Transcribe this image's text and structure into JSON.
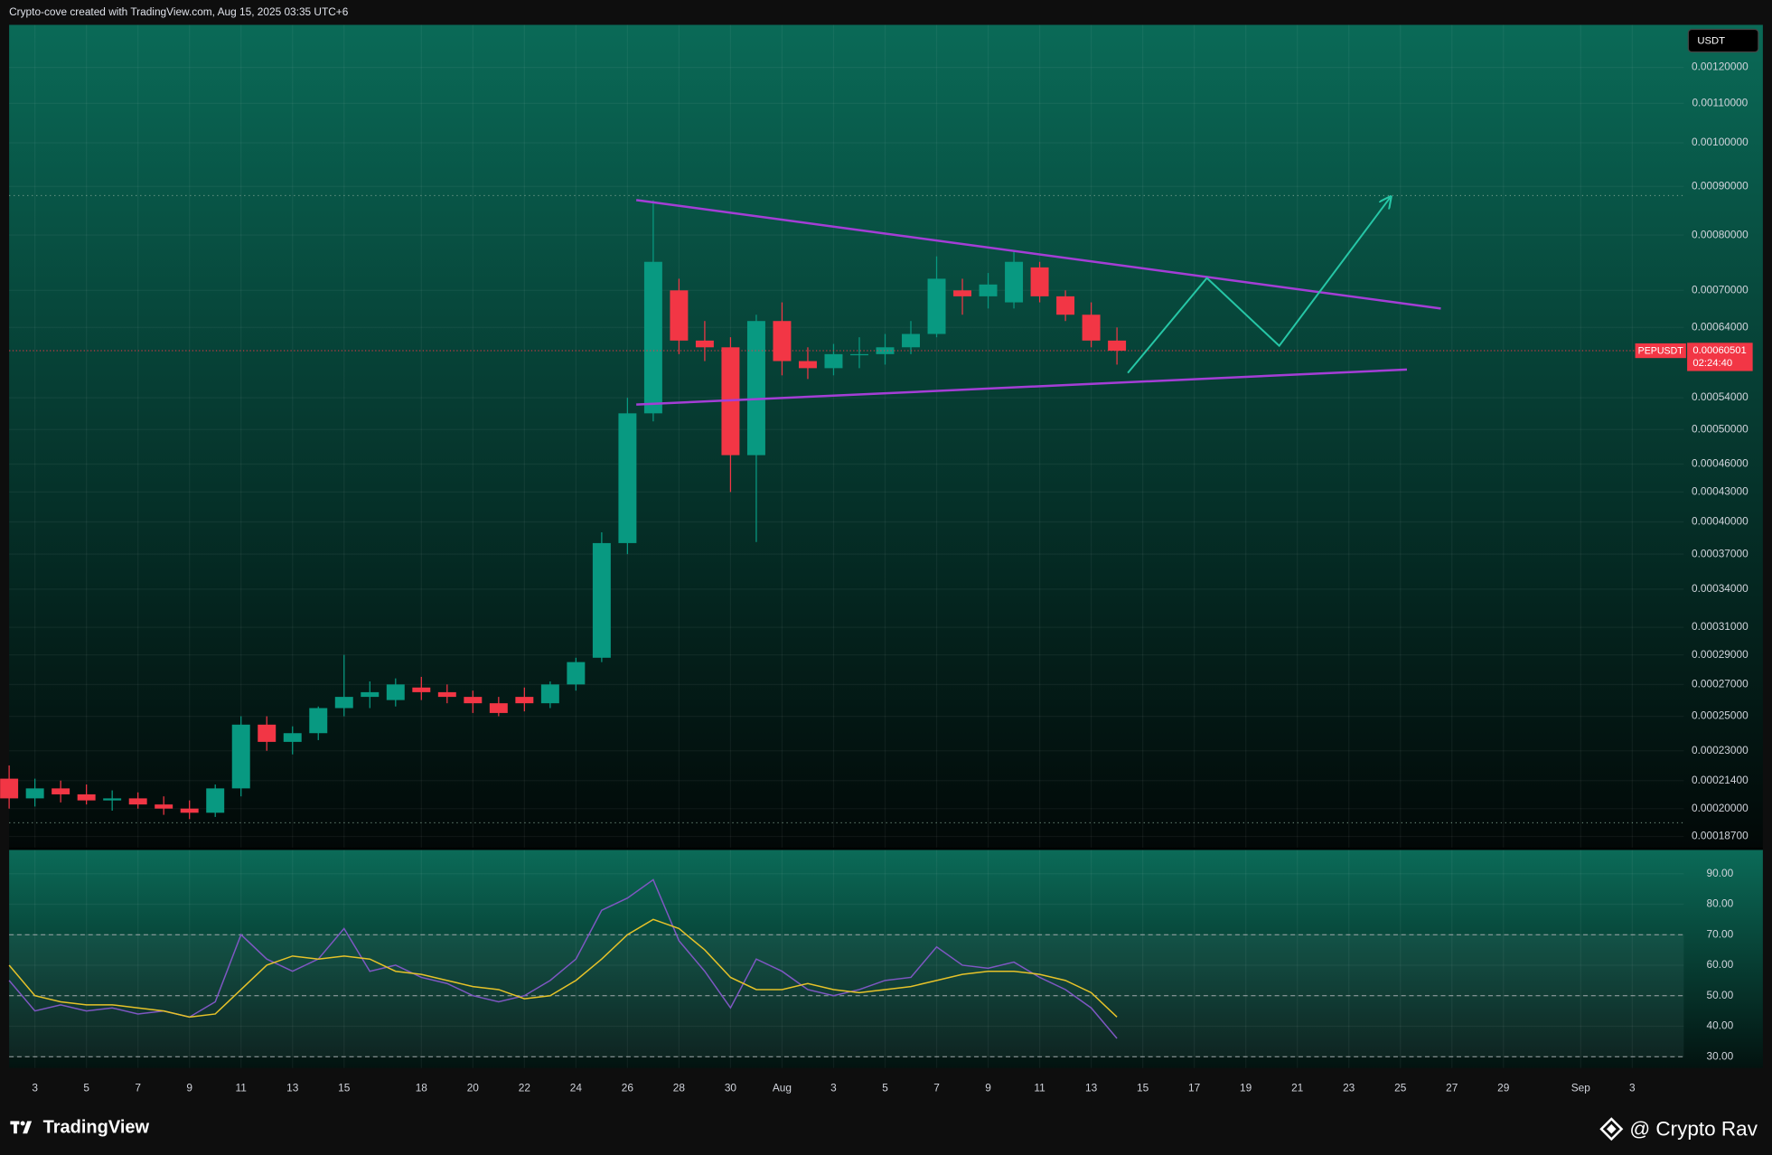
{
  "header": {
    "text": "Crypto-cove created with TradingView.com, Aug 15, 2025 03:35 UTC+6"
  },
  "currency": "USDT",
  "symbol": "PEPUSDT",
  "last_price": 0.00060501,
  "last_price_label": "0.00060501",
  "countdown": "02:24:40",
  "footer": {
    "brand": "TradingView",
    "author": "@ Crypto Rav"
  },
  "chart_data": [
    {
      "type": "candlestick",
      "log_scale": true,
      "grid": true,
      "up_color": "#089981",
      "down_color": "#f23645",
      "xlim": [
        "2025-07-02",
        "2025-09-05"
      ],
      "ylim": [
        0.000182,
        0.00133
      ],
      "yticks": [
        {
          "value": 0.0012,
          "label": "0.00120000"
        },
        {
          "value": 0.0011,
          "label": "0.00110000"
        },
        {
          "value": 0.001,
          "label": "0.00100000"
        },
        {
          "value": 0.0009,
          "label": "0.00090000"
        },
        {
          "value": 0.0008,
          "label": "0.00080000"
        },
        {
          "value": 0.0007,
          "label": "0.00070000"
        },
        {
          "value": 0.00064,
          "label": "0.00064000"
        },
        {
          "value": 0.00054,
          "label": "0.00054000"
        },
        {
          "value": 0.0005,
          "label": "0.00050000"
        },
        {
          "value": 0.00046,
          "label": "0.00046000"
        },
        {
          "value": 0.00043,
          "label": "0.00043000"
        },
        {
          "value": 0.0004,
          "label": "0.00040000"
        },
        {
          "value": 0.00037,
          "label": "0.00037000"
        },
        {
          "value": 0.00034,
          "label": "0.00034000"
        },
        {
          "value": 0.00031,
          "label": "0.00031000"
        },
        {
          "value": 0.00029,
          "label": "0.00029000"
        },
        {
          "value": 0.00027,
          "label": "0.00027000"
        },
        {
          "value": 0.00025,
          "label": "0.00025000"
        },
        {
          "value": 0.00023,
          "label": "0.00023000"
        },
        {
          "value": 0.000214,
          "label": "0.00021400"
        },
        {
          "value": 0.0002,
          "label": "0.00020000"
        },
        {
          "value": 0.000187,
          "label": "0.00018700"
        }
      ],
      "x": [
        "2025-07-02",
        "2025-07-03",
        "2025-07-04",
        "2025-07-05",
        "2025-07-06",
        "2025-07-07",
        "2025-07-08",
        "2025-07-09",
        "2025-07-10",
        "2025-07-11",
        "2025-07-12",
        "2025-07-13",
        "2025-07-14",
        "2025-07-15",
        "2025-07-16",
        "2025-07-17",
        "2025-07-18",
        "2025-07-19",
        "2025-07-20",
        "2025-07-21",
        "2025-07-22",
        "2025-07-23",
        "2025-07-24",
        "2025-07-25",
        "2025-07-26",
        "2025-07-27",
        "2025-07-28",
        "2025-07-29",
        "2025-07-30",
        "2025-07-31",
        "2025-08-01",
        "2025-08-02",
        "2025-08-03",
        "2025-08-04",
        "2025-08-05",
        "2025-08-06",
        "2025-08-07",
        "2025-08-08",
        "2025-08-09",
        "2025-08-10",
        "2025-08-11",
        "2025-08-12",
        "2025-08-13",
        "2025-08-14"
      ],
      "open": [
        0.000215,
        0.000205,
        0.00021,
        0.000207,
        0.000204,
        0.000205,
        0.000202,
        0.0002,
        0.000198,
        0.00021,
        0.000245,
        0.000235,
        0.00024,
        0.000255,
        0.000262,
        0.00026,
        0.000268,
        0.000265,
        0.000262,
        0.000258,
        0.000262,
        0.000258,
        0.00027,
        0.000288,
        0.00038,
        0.00052,
        0.0007,
        0.00062,
        0.00061,
        0.00047,
        0.00065,
        0.00059,
        0.00058,
        0.0006,
        0.0006,
        0.00061,
        0.00063,
        0.0007,
        0.00069,
        0.00068,
        0.00074,
        0.00069,
        0.00066,
        0.00062
      ],
      "high": [
        0.000222,
        0.000215,
        0.000214,
        0.000212,
        0.000209,
        0.000208,
        0.000206,
        0.000204,
        0.000212,
        0.00025,
        0.00025,
        0.000244,
        0.000256,
        0.00029,
        0.000272,
        0.000274,
        0.000275,
        0.00027,
        0.000266,
        0.000262,
        0.000268,
        0.000272,
        0.000288,
        0.00039,
        0.00054,
        0.00087,
        0.00072,
        0.00065,
        0.000625,
        0.00066,
        0.00068,
        0.00061,
        0.000615,
        0.000625,
        0.00063,
        0.00065,
        0.00076,
        0.00072,
        0.00073,
        0.00077,
        0.00075,
        0.0007,
        0.00068,
        0.00064
      ],
      "low": [
        0.0002,
        0.000201,
        0.000203,
        0.000202,
        0.000199,
        0.0002,
        0.000197,
        0.000195,
        0.000196,
        0.000206,
        0.00023,
        0.000228,
        0.000236,
        0.00025,
        0.000255,
        0.000256,
        0.00026,
        0.000258,
        0.000252,
        0.00025,
        0.000253,
        0.000255,
        0.000266,
        0.000285,
        0.00037,
        0.00051,
        0.0006,
        0.00059,
        0.00043,
        0.000381,
        0.00057,
        0.000565,
        0.00057,
        0.00058,
        0.000585,
        0.0006,
        0.000625,
        0.00066,
        0.00067,
        0.00067,
        0.00068,
        0.00065,
        0.00061,
        0.000585
      ],
      "close": [
        0.000205,
        0.00021,
        0.000207,
        0.000204,
        0.000205,
        0.000202,
        0.0002,
        0.000198,
        0.00021,
        0.000245,
        0.000235,
        0.00024,
        0.000255,
        0.000262,
        0.000265,
        0.00027,
        0.000265,
        0.000262,
        0.000258,
        0.000252,
        0.000258,
        0.00027,
        0.000285,
        0.00038,
        0.00052,
        0.00075,
        0.00062,
        0.00061,
        0.00047,
        0.00065,
        0.00059,
        0.00058,
        0.0006,
        0.0006,
        0.00061,
        0.00063,
        0.00072,
        0.00069,
        0.00071,
        0.00075,
        0.00069,
        0.00066,
        0.00062,
        0.000605
      ]
    },
    {
      "type": "line",
      "grid": true,
      "xlim": [
        "2025-07-02",
        "2025-09-05"
      ],
      "ylim": [
        26.3,
        97.8
      ],
      "yticks": [
        {
          "value": 90,
          "label": "90.00"
        },
        {
          "value": 80,
          "label": "80.00"
        },
        {
          "value": 70,
          "label": "70.00"
        },
        {
          "value": 60,
          "label": "60.00"
        },
        {
          "value": 50,
          "label": "50.00"
        },
        {
          "value": 40,
          "label": "40.00"
        },
        {
          "value": 30,
          "label": "30.00"
        }
      ],
      "levels": [
        70,
        50,
        30
      ],
      "xticks": [
        {
          "value": "2025-07-03",
          "label": "3"
        },
        {
          "value": "2025-07-05",
          "label": "5"
        },
        {
          "value": "2025-07-07",
          "label": "7"
        },
        {
          "value": "2025-07-09",
          "label": "9"
        },
        {
          "value": "2025-07-11",
          "label": "11"
        },
        {
          "value": "2025-07-13",
          "label": "13"
        },
        {
          "value": "2025-07-15",
          "label": "15"
        },
        {
          "value": "2025-07-18",
          "label": "18"
        },
        {
          "value": "2025-07-20",
          "label": "20"
        },
        {
          "value": "2025-07-22",
          "label": "22"
        },
        {
          "value": "2025-07-24",
          "label": "24"
        },
        {
          "value": "2025-07-26",
          "label": "26"
        },
        {
          "value": "2025-07-28",
          "label": "28"
        },
        {
          "value": "2025-07-30",
          "label": "30"
        },
        {
          "value": "2025-08-01",
          "label": "Aug"
        },
        {
          "value": "2025-08-03",
          "label": "3"
        },
        {
          "value": "2025-08-05",
          "label": "5"
        },
        {
          "value": "2025-08-07",
          "label": "7"
        },
        {
          "value": "2025-08-09",
          "label": "9"
        },
        {
          "value": "2025-08-11",
          "label": "11"
        },
        {
          "value": "2025-08-13",
          "label": "13"
        },
        {
          "value": "2025-08-15",
          "label": "15"
        },
        {
          "value": "2025-08-17",
          "label": "17"
        },
        {
          "value": "2025-08-19",
          "label": "19"
        },
        {
          "value": "2025-08-21",
          "label": "21"
        },
        {
          "value": "2025-08-23",
          "label": "23"
        },
        {
          "value": "2025-08-25",
          "label": "25"
        },
        {
          "value": "2025-08-27",
          "label": "27"
        },
        {
          "value": "2025-08-29",
          "label": "29"
        },
        {
          "value": "2025-09-01",
          "label": "Sep"
        },
        {
          "value": "2025-09-03",
          "label": "3"
        }
      ],
      "x": [
        "2025-07-02",
        "2025-07-03",
        "2025-07-04",
        "2025-07-05",
        "2025-07-06",
        "2025-07-07",
        "2025-07-08",
        "2025-07-09",
        "2025-07-10",
        "2025-07-11",
        "2025-07-12",
        "2025-07-13",
        "2025-07-14",
        "2025-07-15",
        "2025-07-16",
        "2025-07-17",
        "2025-07-18",
        "2025-07-19",
        "2025-07-20",
        "2025-07-21",
        "2025-07-22",
        "2025-07-23",
        "2025-07-24",
        "2025-07-25",
        "2025-07-26",
        "2025-07-27",
        "2025-07-28",
        "2025-07-29",
        "2025-07-30",
        "2025-07-31",
        "2025-08-01",
        "2025-08-02",
        "2025-08-03",
        "2025-08-04",
        "2025-08-05",
        "2025-08-06",
        "2025-08-07",
        "2025-08-08",
        "2025-08-09",
        "2025-08-10",
        "2025-08-11",
        "2025-08-12",
        "2025-08-13",
        "2025-08-14"
      ],
      "series": [
        {
          "color": "#7e57c2",
          "values": [
            55,
            45,
            47,
            45,
            46,
            44,
            45,
            43,
            48,
            70,
            62,
            58,
            62,
            72,
            58,
            60,
            56,
            54,
            50,
            48,
            50,
            55,
            62,
            78,
            82,
            88,
            68,
            58,
            46,
            62,
            58,
            52,
            50,
            52,
            55,
            56,
            66,
            60,
            59,
            61,
            56,
            52,
            46,
            36
          ]
        },
        {
          "color": "#e6c229",
          "values": [
            60,
            50,
            48,
            47,
            47,
            46,
            45,
            43,
            44,
            52,
            60,
            63,
            62,
            63,
            62,
            58,
            57,
            55,
            53,
            52,
            49,
            50,
            55,
            62,
            70,
            75,
            72,
            65,
            56,
            52,
            52,
            54,
            52,
            51,
            52,
            53,
            55,
            57,
            58,
            58,
            57,
            55,
            51,
            43
          ]
        }
      ]
    }
  ]
}
